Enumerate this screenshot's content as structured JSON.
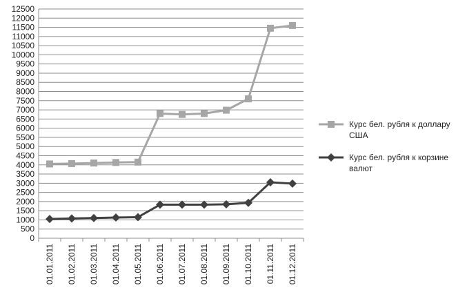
{
  "chart_data": {
    "type": "line",
    "categories": [
      "01.01.2011",
      "01.02.2011",
      "01.03.2011",
      "01.04.2011",
      "01.05.2011",
      "01.06.2011",
      "01.07.2011",
      "01.08.2011",
      "01.09.2011",
      "01.10.2011",
      "01.11.2011",
      "01.12.2011"
    ],
    "ylim": [
      0,
      12500
    ],
    "ytick_step": 500,
    "grid": "horizontal",
    "legend_position": "right",
    "series": [
      {
        "name": "Курс бел. рубля к доллару США",
        "marker": "square",
        "color": "#a6a6a6",
        "values": [
          4050,
          4070,
          4100,
          4130,
          4150,
          6800,
          6750,
          6800,
          6980,
          7600,
          11450,
          11600
        ]
      },
      {
        "name": "Курс бел. рубля к корзине валют",
        "marker": "diamond",
        "color": "#404040",
        "values": [
          1050,
          1080,
          1100,
          1130,
          1150,
          1830,
          1830,
          1830,
          1850,
          1930,
          3050,
          2980
        ]
      }
    ]
  }
}
